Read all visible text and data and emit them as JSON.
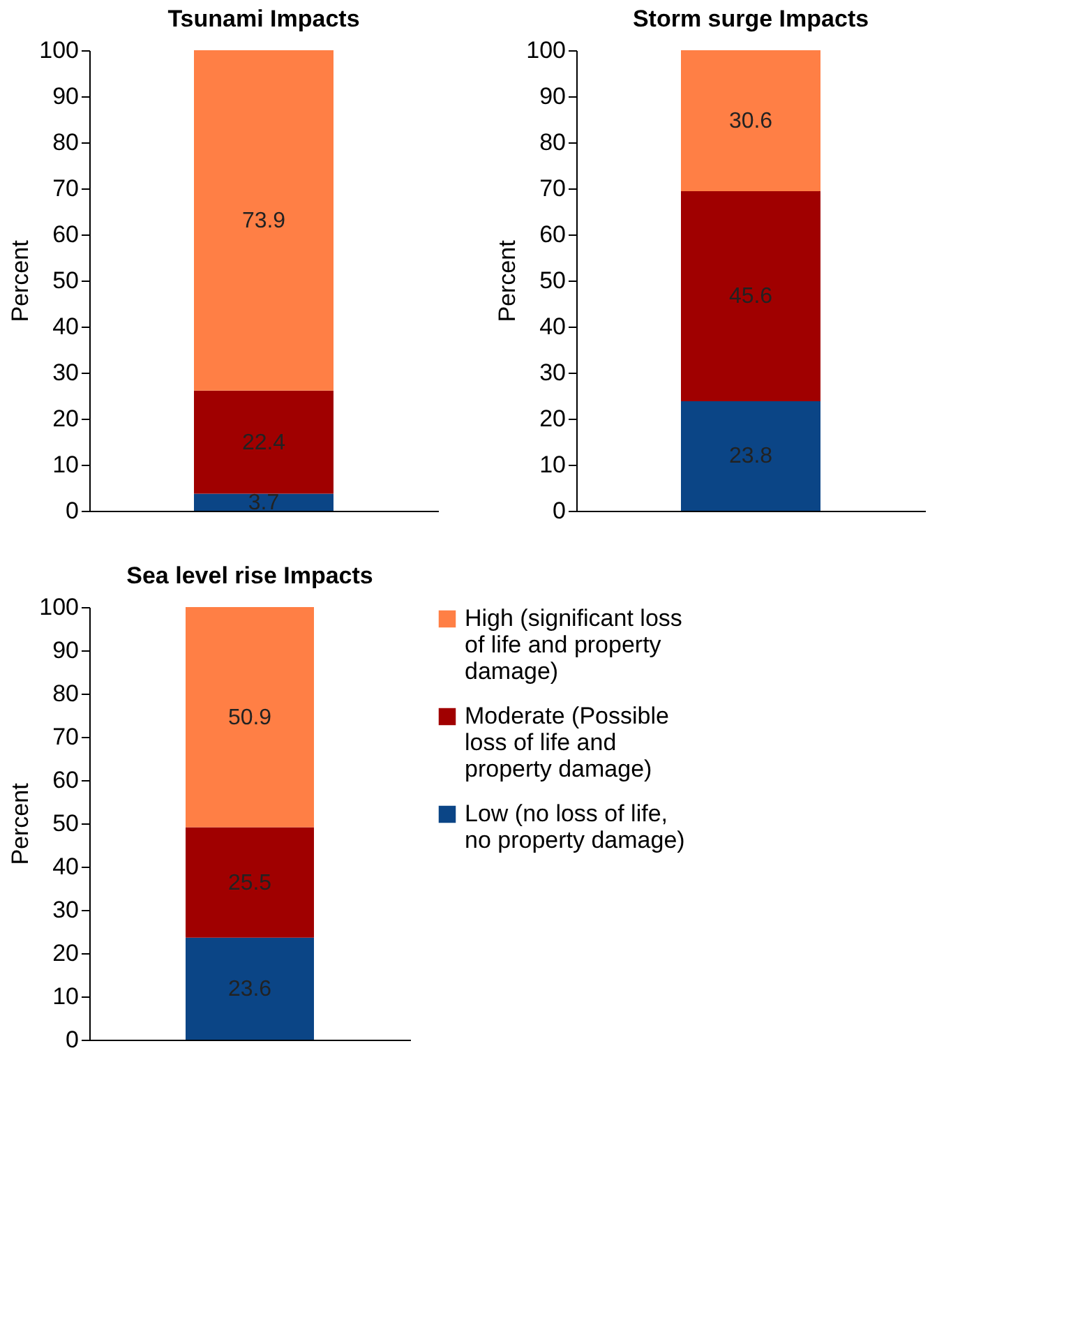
{
  "chart_data": [
    {
      "type": "bar",
      "title": "Tsunami Impacts",
      "ylabel": "Percent",
      "categories": [
        null
      ],
      "stacked": true,
      "data_labels": true,
      "grid": false,
      "ylim": [
        0,
        100
      ],
      "yticks": [
        0,
        10,
        20,
        30,
        40,
        50,
        60,
        70,
        80,
        90,
        100
      ],
      "series": [
        {
          "color": "#0b4586",
          "values": [
            3.7
          ]
        },
        {
          "color": "#a00000",
          "values": [
            22.4
          ]
        },
        {
          "color": "#ff7f45",
          "values": [
            73.9
          ]
        }
      ]
    },
    {
      "type": "bar",
      "title": "Storm surge Impacts",
      "ylabel": "Percent",
      "categories": [
        null
      ],
      "stacked": true,
      "data_labels": true,
      "grid": false,
      "ylim": [
        0,
        100
      ],
      "yticks": [
        0,
        10,
        20,
        30,
        40,
        50,
        60,
        70,
        80,
        90,
        100
      ],
      "series": [
        {
          "color": "#0b4586",
          "values": [
            23.8
          ]
        },
        {
          "color": "#a00000",
          "values": [
            45.6
          ]
        },
        {
          "color": "#ff7f45",
          "values": [
            30.6
          ]
        }
      ]
    },
    {
      "type": "bar",
      "title": "Sea level rise Impacts",
      "ylabel": "Percent",
      "categories": [
        null
      ],
      "stacked": true,
      "data_labels": true,
      "grid": false,
      "legend": "right",
      "ylim": [
        0,
        100
      ],
      "yticks": [
        0,
        10,
        20,
        30,
        40,
        50,
        60,
        70,
        80,
        90,
        100
      ],
      "series": [
        {
          "name": "Low (no loss of life, no property damage)",
          "color": "#0b4586",
          "values": [
            23.6
          ]
        },
        {
          "name": "Moderate (Possible loss of life and property damage)",
          "color": "#a00000",
          "values": [
            25.5
          ]
        },
        {
          "name": "High (significant loss of life and property damage)",
          "color": "#ff7f45",
          "values": [
            50.9
          ]
        }
      ]
    }
  ]
}
